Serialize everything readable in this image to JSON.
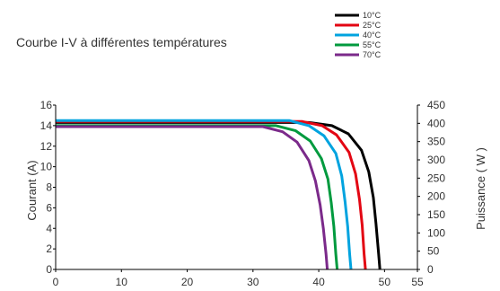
{
  "chart_data": {
    "type": "line",
    "title": "Courbe I-V à différentes températures",
    "xlabel": "",
    "ylabel": "Courant (A)",
    "y2label": "Puissance ( W )",
    "xlim": [
      0,
      55
    ],
    "ylim": [
      0,
      16
    ],
    "y2lim": [
      0,
      450
    ],
    "xticks": [
      0,
      10,
      20,
      30,
      40,
      50,
      55
    ],
    "yticks": [
      0,
      2,
      4,
      6,
      8,
      10,
      12,
      14,
      16
    ],
    "y2ticks": [
      0,
      50,
      100,
      150,
      200,
      250,
      300,
      350,
      400,
      450
    ],
    "grid": false,
    "legend": "top-right",
    "series": [
      {
        "name": "10°C",
        "color": "#000000",
        "x": [
          0,
          38.5,
          42.0,
          44.5,
          46.5,
          47.6,
          48.3,
          48.7,
          49.1,
          49.3
        ],
        "y": [
          14.3,
          14.3,
          14.0,
          13.2,
          11.6,
          9.5,
          7.0,
          4.5,
          1.5,
          0
        ]
      },
      {
        "name": "25°C",
        "color": "#e30613",
        "x": [
          0,
          37.5,
          40.5,
          42.7,
          44.6,
          45.6,
          46.2,
          46.6,
          46.9,
          47.1
        ],
        "y": [
          14.4,
          14.4,
          14.0,
          13.1,
          11.4,
          9.3,
          6.8,
          4.3,
          1.5,
          0
        ]
      },
      {
        "name": "40°C",
        "color": "#00a3df",
        "x": [
          0,
          35.5,
          38.5,
          40.8,
          42.6,
          43.5,
          44.0,
          44.4,
          44.7,
          44.9
        ],
        "y": [
          14.5,
          14.5,
          14.0,
          13.0,
          11.3,
          9.1,
          6.6,
          4.2,
          1.5,
          0
        ]
      },
      {
        "name": "55°C",
        "color": "#009a3e",
        "x": [
          0,
          33.5,
          36.5,
          38.7,
          40.4,
          41.4,
          41.9,
          42.3,
          42.6,
          42.8
        ],
        "y": [
          14.0,
          14.0,
          13.5,
          12.5,
          10.8,
          8.8,
          6.5,
          4.2,
          1.5,
          0
        ]
      },
      {
        "name": "70°C",
        "color": "#7b2a8a",
        "x": [
          0,
          31.5,
          34.5,
          36.7,
          38.5,
          39.5,
          40.2,
          40.7,
          41.1,
          41.3
        ],
        "y": [
          13.9,
          13.9,
          13.4,
          12.4,
          10.6,
          8.6,
          6.3,
          4.0,
          1.5,
          0
        ]
      }
    ]
  }
}
